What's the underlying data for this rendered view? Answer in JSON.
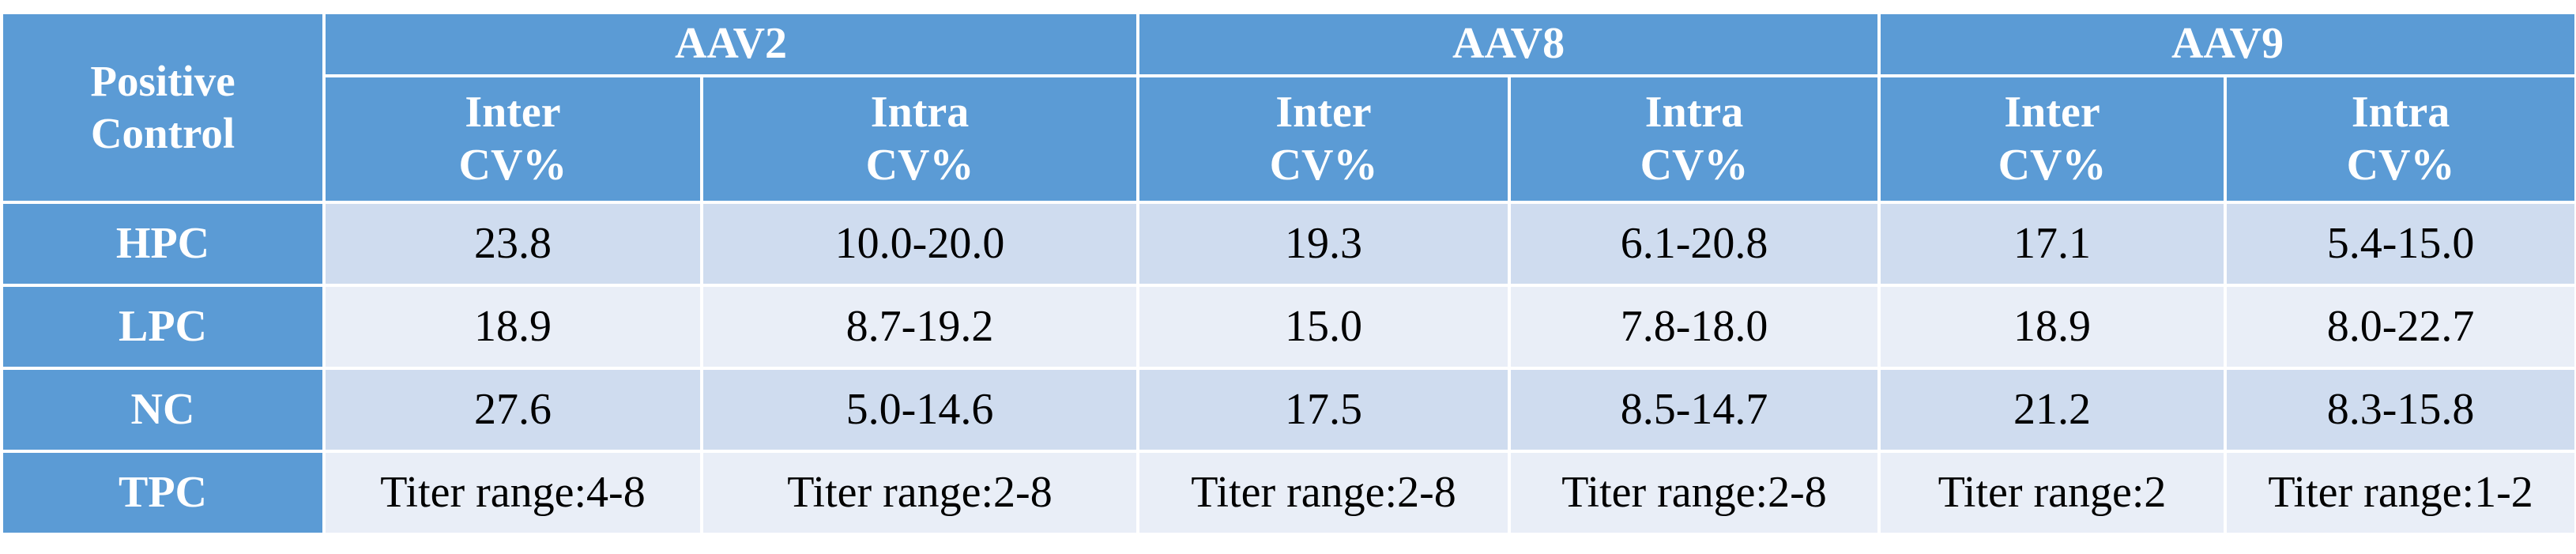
{
  "table": {
    "corner": [
      "Positive",
      "Control"
    ],
    "serotypes": [
      "AAV2",
      "AAV8",
      "AAV9"
    ],
    "sub_headers": [
      [
        "Inter",
        "CV%"
      ],
      [
        "Intra",
        "CV%"
      ],
      [
        "Inter",
        "CV%"
      ],
      [
        "Intra",
        "CV%"
      ],
      [
        "Inter",
        "CV%"
      ],
      [
        "Intra",
        "CV%"
      ]
    ],
    "rows": [
      {
        "label": "HPC",
        "cells": [
          "23.8",
          "10.0-20.0",
          "19.3",
          "6.1-20.8",
          "17.1",
          "5.4-15.0"
        ]
      },
      {
        "label": "LPC",
        "cells": [
          "18.9",
          "8.7-19.2",
          "15.0",
          "7.8-18.0",
          "18.9",
          "8.0-22.7"
        ]
      },
      {
        "label": "NC",
        "cells": [
          "27.6",
          "5.0-14.6",
          "17.5",
          "8.5-14.7",
          "21.2",
          "8.3-15.8"
        ]
      },
      {
        "label": "TPC",
        "cells": [
          "Titer range:4-8",
          "Titer range:2-8",
          "Titer range:2-8",
          "Titer range:2-8",
          "Titer range:2",
          "Titer range:1-2"
        ]
      }
    ]
  },
  "colors": {
    "header_blue": "#5b9bd5",
    "row_tint_dark": "#cfdcef",
    "row_tint_light": "#e9eef7",
    "header_text": "#ffffff"
  }
}
